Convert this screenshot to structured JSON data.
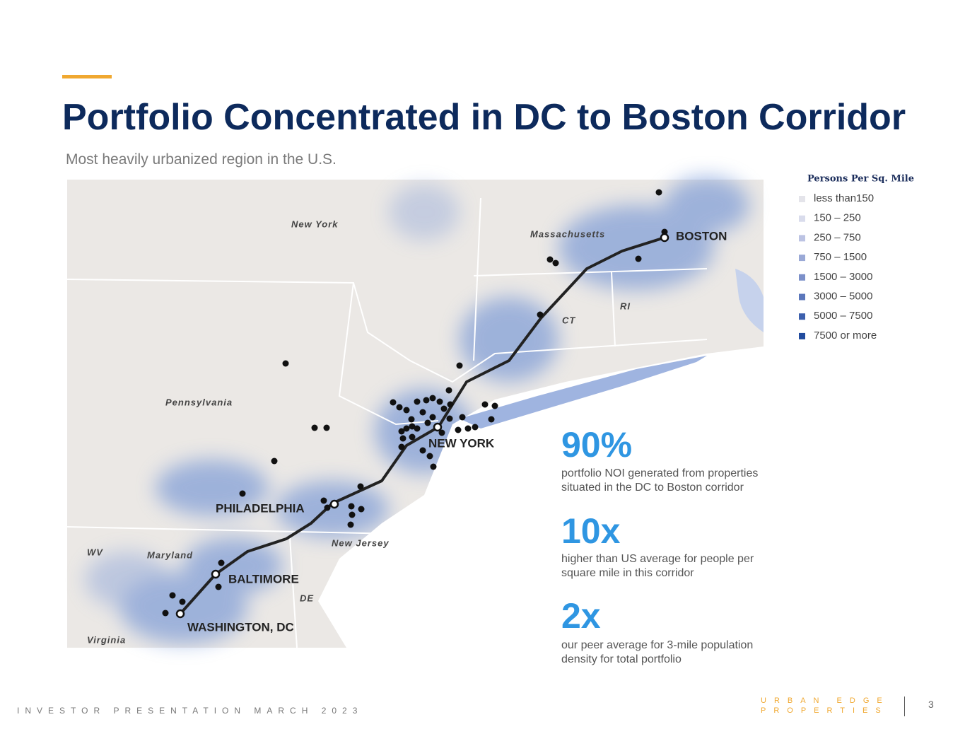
{
  "header": {
    "title": "Portfolio Concentrated in DC to Boston Corridor",
    "subtitle": "Most heavily urbanized region in the U.S."
  },
  "map": {
    "states": [
      "New York",
      "Massachusetts",
      "CT",
      "RI",
      "Pennsylvania",
      "New Jersey",
      "Maryland",
      "WV",
      "DE",
      "Virginia"
    ],
    "cities": [
      "BOSTON",
      "NEW YORK",
      "PHILADELPHIA",
      "BALTIMORE",
      "WASHINGTON, DC"
    ]
  },
  "legend": {
    "title": "Persons Per Sq. Mile",
    "items": [
      {
        "label": "less than150",
        "color": "#e4e4ea"
      },
      {
        "label": "150 – 250",
        "color": "#d9dcec"
      },
      {
        "label": "250 – 750",
        "color": "#bcc3e3"
      },
      {
        "label": "750 – 1500",
        "color": "#9aa9d6"
      },
      {
        "label": "1500 – 3000",
        "color": "#7c90c9"
      },
      {
        "label": "3000 – 5000",
        "color": "#5b77bb"
      },
      {
        "label": "5000 – 7500",
        "color": "#3d60ad"
      },
      {
        "label": "7500 or more",
        "color": "#214b9e"
      }
    ]
  },
  "stats": [
    {
      "figure": "90%",
      "text": "portfolio NOI generated from properties situated in the DC to Boston corridor"
    },
    {
      "figure": "10x",
      "text": "higher than US average for people per square mile in this corridor"
    },
    {
      "figure": "2x",
      "text": "our peer average for 3-mile population density for total portfolio"
    }
  ],
  "footer": {
    "left": "INVESTOR PRESENTATION MARCH 2023",
    "brand_line1": "URBAN EDGE",
    "brand_line2": "PROPERTIES",
    "page": "3"
  }
}
